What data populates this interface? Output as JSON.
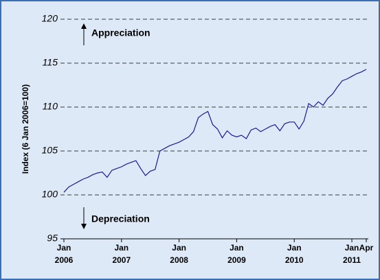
{
  "chart_data": {
    "type": "line",
    "ylabel": "Index (6 Jan 2006=100)",
    "annotations": [
      "Appreciation",
      "Depreciation"
    ],
    "x": [
      "2006-01",
      "2006-02",
      "2006-03",
      "2006-04",
      "2006-05",
      "2006-06",
      "2006-07",
      "2006-08",
      "2006-09",
      "2006-10",
      "2006-11",
      "2006-12",
      "2007-01",
      "2007-02",
      "2007-03",
      "2007-04",
      "2007-05",
      "2007-06",
      "2007-07",
      "2007-08",
      "2007-09",
      "2007-10",
      "2007-11",
      "2007-12",
      "2008-01",
      "2008-02",
      "2008-03",
      "2008-04",
      "2008-05",
      "2008-06",
      "2008-07",
      "2008-08",
      "2008-09",
      "2008-10",
      "2008-11",
      "2008-12",
      "2009-01",
      "2009-02",
      "2009-03",
      "2009-04",
      "2009-05",
      "2009-06",
      "2009-07",
      "2009-08",
      "2009-09",
      "2009-10",
      "2009-11",
      "2009-12",
      "2010-01",
      "2010-02",
      "2010-03",
      "2010-04",
      "2010-05",
      "2010-06",
      "2010-07",
      "2010-08",
      "2010-09",
      "2010-10",
      "2010-11",
      "2010-12",
      "2011-01",
      "2011-02",
      "2011-03",
      "2011-04"
    ],
    "series": [
      {
        "name": "Index",
        "color": "#1a1a9a",
        "values": [
          100.3,
          100.9,
          101.2,
          101.5,
          101.8,
          102.0,
          102.3,
          102.5,
          102.6,
          102.0,
          102.8,
          103.0,
          103.2,
          103.5,
          103.7,
          103.9,
          103.0,
          102.2,
          102.7,
          102.9,
          105.0,
          105.3,
          105.6,
          105.8,
          106.0,
          106.3,
          106.6,
          107.2,
          108.8,
          109.2,
          109.5,
          108.0,
          107.5,
          106.5,
          107.3,
          106.8,
          106.6,
          106.8,
          106.4,
          107.4,
          107.6,
          107.2,
          107.5,
          107.8,
          108.0,
          107.3,
          108.1,
          108.3,
          108.3,
          107.5,
          108.4,
          110.4,
          110.0,
          110.6,
          110.2,
          111.0,
          111.5,
          112.3,
          113.0,
          113.2,
          113.5,
          113.8,
          114.0,
          114.3
        ]
      }
    ],
    "xlim": [
      "2006-01",
      "2011-04"
    ],
    "xticks": [
      {
        "value": "2006-01",
        "label": "Jan 2006"
      },
      {
        "value": "2007-01",
        "label": "Jan 2007"
      },
      {
        "value": "2008-01",
        "label": "Jan 2008"
      },
      {
        "value": "2009-01",
        "label": "Jan 2009"
      },
      {
        "value": "2010-01",
        "label": "Jan 2010"
      },
      {
        "value": "2011-01",
        "label": "Jan 2011"
      },
      {
        "value": "2011-04",
        "label": "Apr"
      }
    ],
    "ylim": [
      95,
      120
    ],
    "yticks": [
      95,
      100,
      105,
      110,
      115,
      120
    ],
    "grid": true
  }
}
